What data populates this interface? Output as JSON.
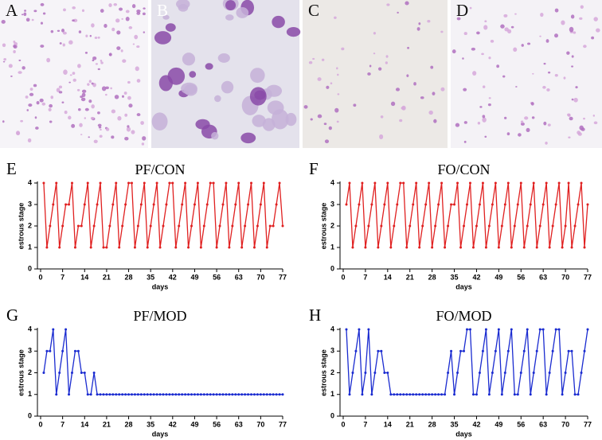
{
  "image_panels": {
    "labels": [
      "A",
      "B",
      "C",
      "D"
    ]
  },
  "chart_data": [
    {
      "type": "line",
      "panel": "E",
      "title": "PF/CON",
      "x_label": "days",
      "y_label": "estrous stage",
      "color": "#e02020",
      "x": [
        1,
        2,
        3,
        4,
        5,
        6,
        7,
        8,
        9,
        10,
        11,
        12,
        13,
        14,
        15,
        16,
        17,
        18,
        19,
        20,
        21,
        22,
        23,
        24,
        25,
        26,
        27,
        28,
        29,
        30,
        31,
        32,
        33,
        34,
        35,
        36,
        37,
        38,
        39,
        40,
        41,
        42,
        43,
        44,
        45,
        46,
        47,
        48,
        49,
        50,
        51,
        52,
        53,
        54,
        55,
        56,
        57,
        58,
        59,
        60,
        61,
        62,
        63,
        64,
        65,
        66,
        67,
        68,
        69,
        70,
        71,
        72,
        73,
        74,
        75,
        76,
        77
      ],
      "values": [
        4,
        1,
        2,
        3,
        4,
        1,
        2,
        3,
        3,
        4,
        1,
        2,
        2,
        3,
        4,
        1,
        2,
        3,
        4,
        1,
        1,
        2,
        3,
        4,
        1,
        2,
        3,
        4,
        4,
        1,
        2,
        3,
        4,
        1,
        2,
        3,
        4,
        1,
        2,
        3,
        4,
        4,
        1,
        2,
        3,
        4,
        1,
        2,
        3,
        4,
        1,
        2,
        3,
        4,
        4,
        1,
        2,
        3,
        4,
        1,
        2,
        3,
        4,
        1,
        2,
        3,
        4,
        1,
        2,
        3,
        4,
        1,
        2,
        2,
        3,
        4,
        2
      ],
      "xlim": [
        0,
        77
      ],
      "xticks": [
        0,
        7,
        14,
        21,
        28,
        35,
        42,
        49,
        56,
        63,
        70,
        77
      ],
      "ylim": [
        0,
        4
      ],
      "yticks": [
        0,
        1,
        2,
        3,
        4
      ]
    },
    {
      "type": "line",
      "panel": "F",
      "title": "FO/CON",
      "x_label": "days",
      "y_label": "estrous stage",
      "color": "#e02020",
      "x": [
        1,
        2,
        3,
        4,
        5,
        6,
        7,
        8,
        9,
        10,
        11,
        12,
        13,
        14,
        15,
        16,
        17,
        18,
        19,
        20,
        21,
        22,
        23,
        24,
        25,
        26,
        27,
        28,
        29,
        30,
        31,
        32,
        33,
        34,
        35,
        36,
        37,
        38,
        39,
        40,
        41,
        42,
        43,
        44,
        45,
        46,
        47,
        48,
        49,
        50,
        51,
        52,
        53,
        54,
        55,
        56,
        57,
        58,
        59,
        60,
        61,
        62,
        63,
        64,
        65,
        66,
        67,
        68,
        69,
        70,
        71,
        72,
        73,
        74,
        75,
        76,
        77
      ],
      "values": [
        3,
        4,
        1,
        2,
        3,
        4,
        1,
        2,
        3,
        4,
        1,
        2,
        3,
        4,
        1,
        2,
        3,
        4,
        4,
        1,
        2,
        3,
        4,
        1,
        2,
        3,
        4,
        1,
        2,
        3,
        4,
        1,
        2,
        3,
        3,
        4,
        1,
        2,
        3,
        4,
        1,
        2,
        3,
        4,
        1,
        2,
        3,
        4,
        1,
        2,
        3,
        4,
        1,
        2,
        3,
        4,
        1,
        2,
        3,
        4,
        1,
        2,
        3,
        4,
        1,
        2,
        3,
        4,
        1,
        2,
        4,
        1,
        2,
        3,
        4,
        1,
        3
      ],
      "xlim": [
        0,
        77
      ],
      "xticks": [
        0,
        7,
        14,
        21,
        28,
        35,
        42,
        49,
        56,
        63,
        70,
        77
      ],
      "ylim": [
        0,
        4
      ],
      "yticks": [
        0,
        1,
        2,
        3,
        4
      ]
    },
    {
      "type": "line",
      "panel": "G",
      "title": "PF/MOD",
      "x_label": "days",
      "y_label": "estrous stage",
      "color": "#1a2bd0",
      "x": [
        1,
        2,
        3,
        4,
        5,
        6,
        7,
        8,
        9,
        10,
        11,
        12,
        13,
        14,
        15,
        16,
        17,
        18,
        19,
        20,
        21,
        22,
        23,
        24,
        25,
        26,
        27,
        28,
        29,
        30,
        31,
        32,
        33,
        34,
        35,
        36,
        37,
        38,
        39,
        40,
        41,
        42,
        43,
        44,
        45,
        46,
        47,
        48,
        49,
        50,
        51,
        52,
        53,
        54,
        55,
        56,
        57,
        58,
        59,
        60,
        61,
        62,
        63,
        64,
        65,
        66,
        67,
        68,
        69,
        70,
        71,
        72,
        73,
        74,
        75,
        76,
        77
      ],
      "values": [
        2,
        3,
        3,
        4,
        1,
        2,
        3,
        4,
        1,
        2,
        3,
        3,
        2,
        2,
        1,
        1,
        2,
        1,
        1,
        1,
        1,
        1,
        1,
        1,
        1,
        1,
        1,
        1,
        1,
        1,
        1,
        1,
        1,
        1,
        1,
        1,
        1,
        1,
        1,
        1,
        1,
        1,
        1,
        1,
        1,
        1,
        1,
        1,
        1,
        1,
        1,
        1,
        1,
        1,
        1,
        1,
        1,
        1,
        1,
        1,
        1,
        1,
        1,
        1,
        1,
        1,
        1,
        1,
        1,
        1,
        1,
        1,
        1,
        1,
        1,
        1,
        1
      ],
      "xlim": [
        0,
        77
      ],
      "xticks": [
        0,
        7,
        14,
        21,
        28,
        35,
        42,
        49,
        56,
        63,
        70,
        77
      ],
      "ylim": [
        0,
        4
      ],
      "yticks": [
        0,
        1,
        2,
        3,
        4
      ]
    },
    {
      "type": "line",
      "panel": "H",
      "title": "FO/MOD",
      "x_label": "days",
      "y_label": "estrous stage",
      "color": "#1a2bd0",
      "x": [
        1,
        2,
        3,
        4,
        5,
        6,
        7,
        8,
        9,
        10,
        11,
        12,
        13,
        14,
        15,
        16,
        17,
        18,
        19,
        20,
        21,
        22,
        23,
        24,
        25,
        26,
        27,
        28,
        29,
        30,
        31,
        32,
        33,
        34,
        35,
        36,
        37,
        38,
        39,
        40,
        41,
        42,
        43,
        44,
        45,
        46,
        47,
        48,
        49,
        50,
        51,
        52,
        53,
        54,
        55,
        56,
        57,
        58,
        59,
        60,
        61,
        62,
        63,
        64,
        65,
        66,
        67,
        68,
        69,
        70,
        71,
        72,
        73,
        74,
        75,
        76,
        77
      ],
      "values": [
        4,
        1,
        2,
        3,
        4,
        1,
        2,
        4,
        1,
        2,
        3,
        3,
        2,
        2,
        1,
        1,
        1,
        1,
        1,
        1,
        1,
        1,
        1,
        1,
        1,
        1,
        1,
        1,
        1,
        1,
        1,
        1,
        2,
        3,
        1,
        2,
        3,
        3,
        4,
        4,
        1,
        1,
        2,
        3,
        4,
        1,
        2,
        3,
        4,
        1,
        2,
        3,
        4,
        1,
        1,
        2,
        3,
        4,
        1,
        2,
        3,
        4,
        4,
        1,
        2,
        3,
        4,
        4,
        1,
        2,
        3,
        3,
        1,
        1,
        2,
        3,
        4
      ],
      "xlim": [
        0,
        77
      ],
      "xticks": [
        0,
        7,
        14,
        21,
        28,
        35,
        42,
        49,
        56,
        63,
        70,
        77
      ],
      "ylim": [
        0,
        4
      ],
      "yticks": [
        0,
        1,
        2,
        3,
        4
      ]
    }
  ]
}
